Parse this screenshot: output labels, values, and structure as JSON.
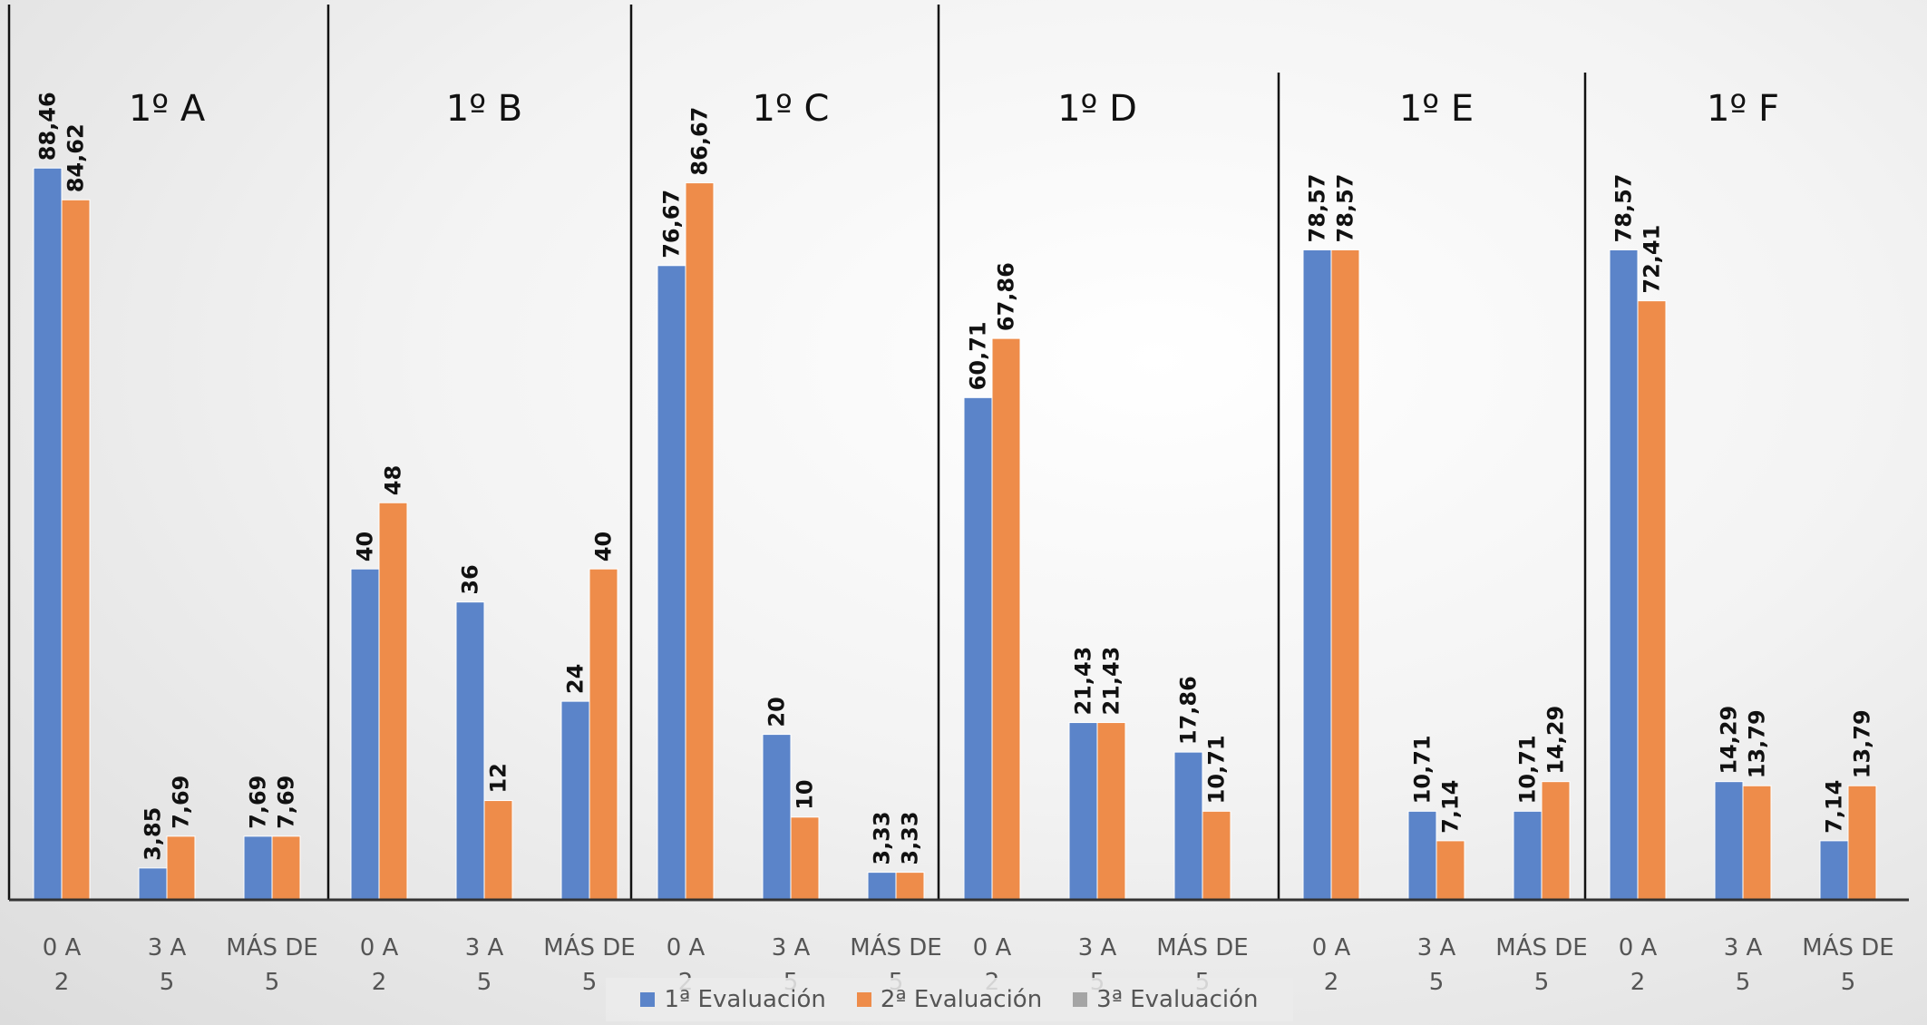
{
  "chart_data": {
    "type": "bar",
    "groups": [
      {
        "title": "1º A",
        "categories": [
          "0 A 2",
          "3 A 5",
          "MÁS DE 5"
        ],
        "series_values": [
          [
            88.46,
            3.85,
            7.69
          ],
          [
            84.62,
            7.69,
            7.69
          ]
        ],
        "labels": [
          [
            "88,46",
            "3,85",
            "7,69"
          ],
          [
            "84,62",
            "7,69",
            "7,69"
          ]
        ]
      },
      {
        "title": "1º B",
        "categories": [
          "0 A 2",
          "3 A 5",
          "MÁS DE 5"
        ],
        "series_values": [
          [
            40,
            36,
            24
          ],
          [
            48,
            12,
            40
          ]
        ],
        "labels": [
          [
            "40",
            "36",
            "24"
          ],
          [
            "48",
            "12",
            "40"
          ]
        ]
      },
      {
        "title": "1º C",
        "categories": [
          "0 A 2",
          "3 A 5",
          "MÁS DE 5"
        ],
        "series_values": [
          [
            76.67,
            20,
            3.33
          ],
          [
            86.67,
            10,
            3.33
          ]
        ],
        "labels": [
          [
            "76,67",
            "20",
            "3,33"
          ],
          [
            "86,67",
            "10",
            "3,33"
          ]
        ]
      },
      {
        "title": "1º D",
        "categories": [
          "0 A 2",
          "3 A 5",
          "MÁS DE 5"
        ],
        "series_values": [
          [
            60.71,
            21.43,
            17.86
          ],
          [
            67.86,
            21.43,
            10.71
          ]
        ],
        "labels": [
          [
            "60,71",
            "21,43",
            "17,86"
          ],
          [
            "67,86",
            "21,43",
            "10,71"
          ]
        ]
      },
      {
        "title": "1º E",
        "categories": [
          "0 A 2",
          "3 A 5",
          "MÁS DE 5"
        ],
        "series_values": [
          [
            78.57,
            10.71,
            10.71
          ],
          [
            78.57,
            7.14,
            14.29
          ]
        ],
        "labels": [
          [
            "78,57",
            "10,71",
            "10,71"
          ],
          [
            "78,57",
            "7,14",
            "14,29"
          ]
        ]
      },
      {
        "title": "1º F",
        "categories": [
          "0 A 2",
          "3 A 5",
          "MÁS DE 5"
        ],
        "series_values": [
          [
            78.57,
            14.29,
            7.14
          ],
          [
            72.41,
            13.79,
            13.79
          ]
        ],
        "labels": [
          [
            "78,57",
            "14,29",
            "7,14"
          ],
          [
            "72,41",
            "13,79",
            "13,79"
          ]
        ]
      }
    ],
    "series": [
      {
        "name": "1ª Evaluación",
        "color": "#5b84c9"
      },
      {
        "name": "2ª Evaluación",
        "color": "#ee8c4a"
      },
      {
        "name": "3ª Evaluación",
        "color": "#a5a5a5"
      }
    ],
    "ylim": [
      0,
      100
    ],
    "grid": false,
    "legend_position": "bottom"
  }
}
